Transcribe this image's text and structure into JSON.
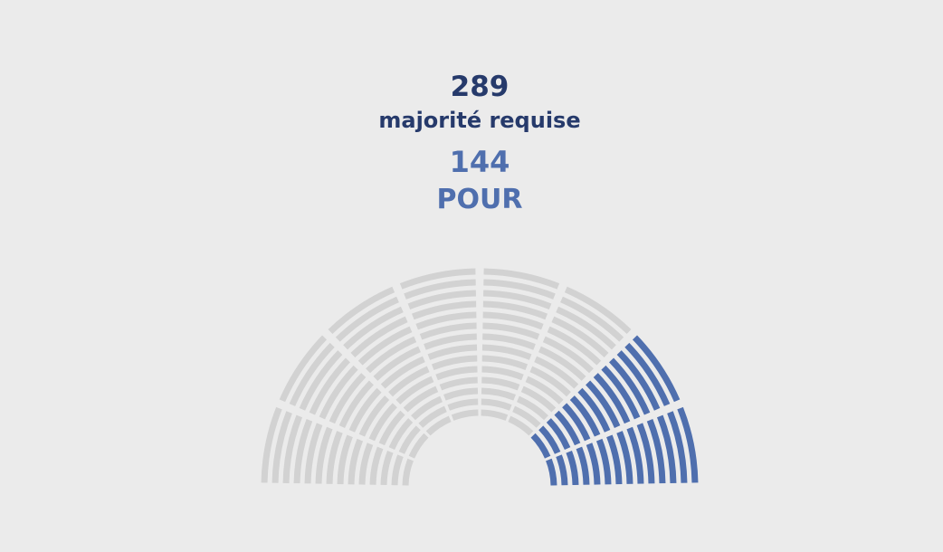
{
  "majority": {
    "value": 289,
    "label": "majorité requise"
  },
  "vote": {
    "value": 144,
    "label": "POUR"
  }
}
